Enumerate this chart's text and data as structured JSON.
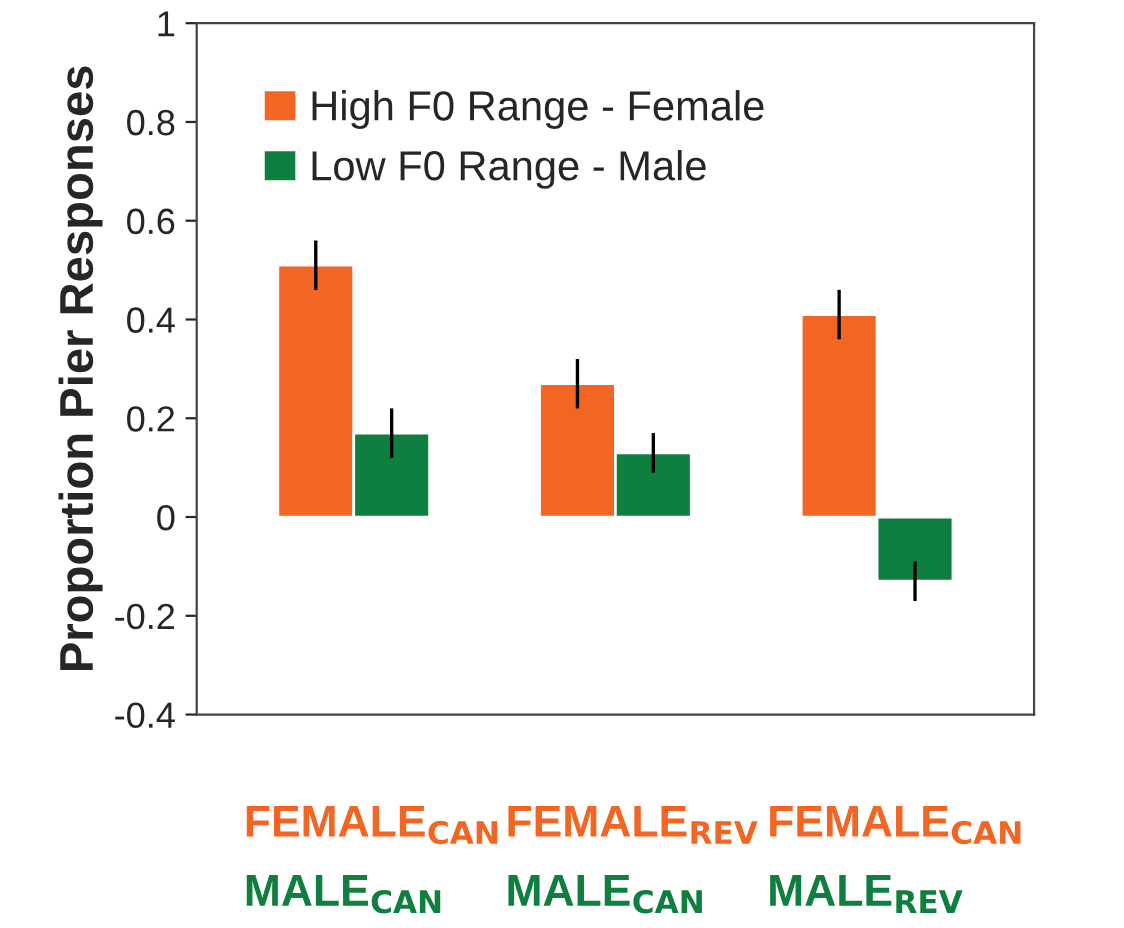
{
  "chart_data": {
    "type": "bar",
    "ylabel": "Proportion Pier Responses",
    "categories": [
      "FEMALE$_{CAN}$\nMALE$_{CAN}$",
      "FEMALE$_{REV}$\nMALE$_{CAN}$",
      "FEMALE$_{CAN}$\nMALE$_{REV}$"
    ],
    "series": [
      {
        "name": "High F0 Range - Female",
        "color": "#f26522",
        "values": [
          0.51,
          0.27,
          0.41
        ],
        "errors": [
          0.05,
          0.05,
          0.05
        ]
      },
      {
        "name": "Low F0 Range - Male",
        "color": "#0f7f3f",
        "values": [
          0.17,
          0.13,
          -0.13
        ],
        "errors": [
          0.05,
          0.04,
          0.04
        ]
      }
    ],
    "ylim": [
      -0.4,
      1
    ],
    "yticks": [
      -0.4,
      -0.2,
      0,
      0.2,
      0.4,
      0.6,
      0.8,
      1
    ],
    "grid": false,
    "legend": "top left"
  }
}
